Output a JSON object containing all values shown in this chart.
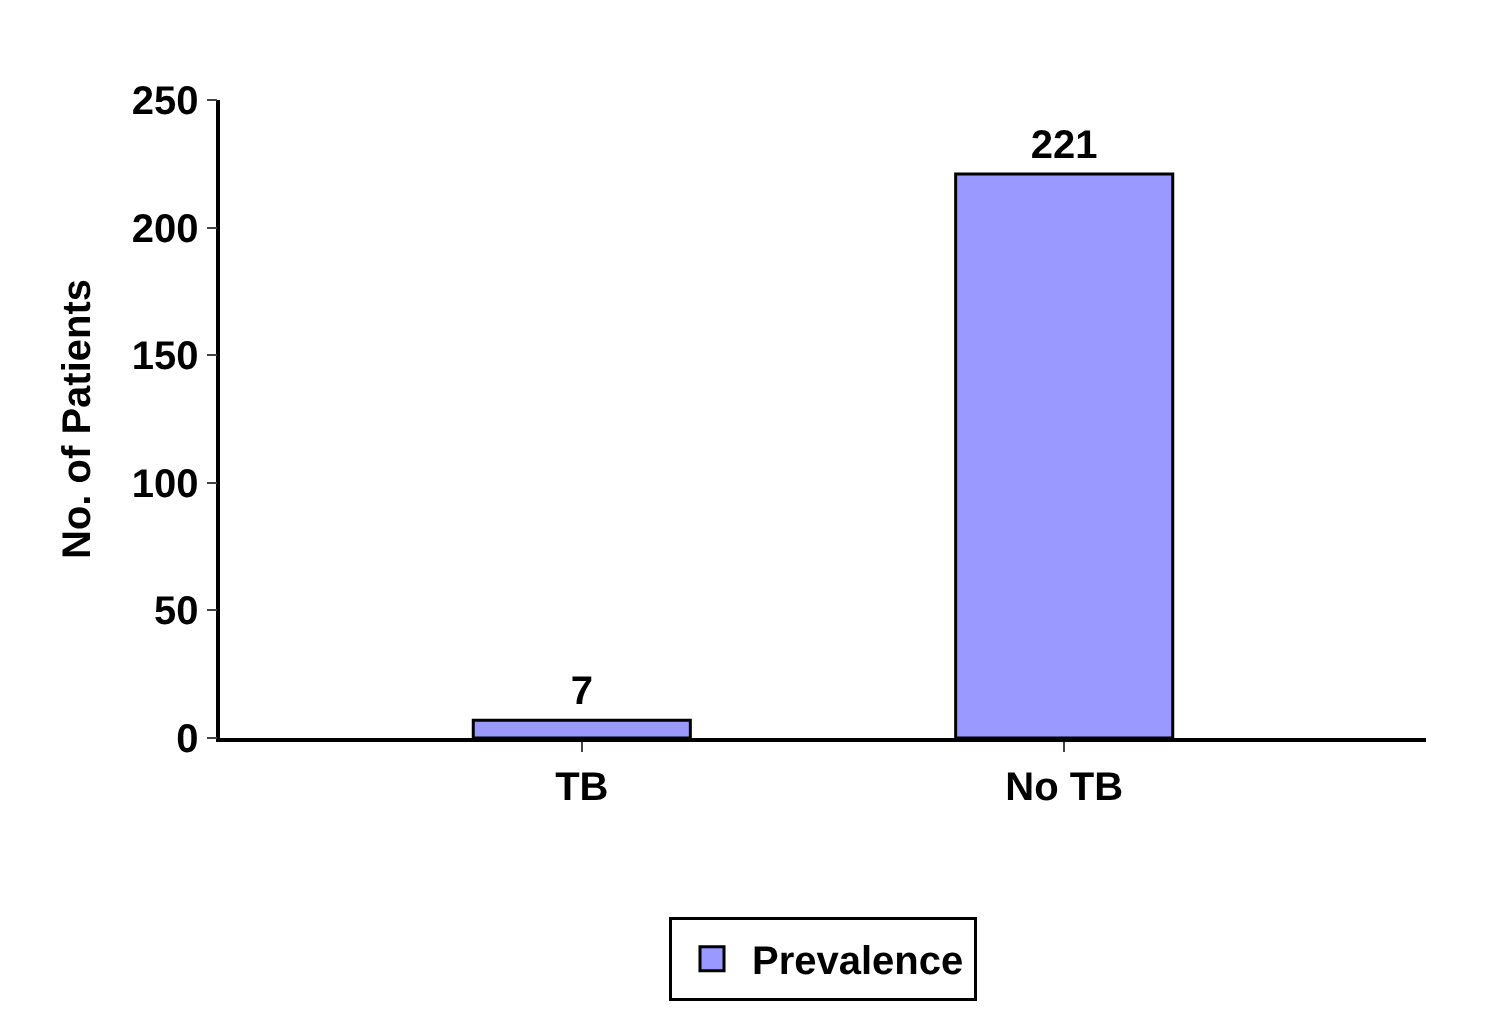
{
  "chart_data": {
    "type": "bar",
    "ylabel": "No. of Patients",
    "categories": [
      "TB",
      "No TB"
    ],
    "series": [
      {
        "name": "Prevalence",
        "color": "#9999ff",
        "values": [
          7,
          221
        ]
      }
    ],
    "ylim": [
      0,
      250
    ],
    "yticks": [
      0,
      50,
      100,
      150,
      200,
      250
    ],
    "data_labels": true,
    "legend": "bottom"
  }
}
